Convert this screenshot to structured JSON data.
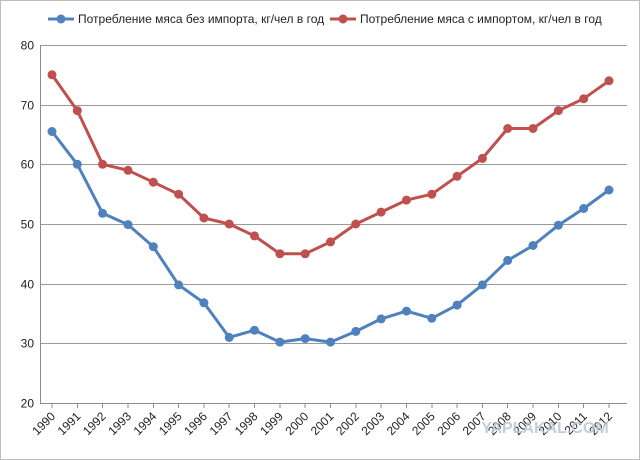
{
  "chart_data": {
    "type": "line",
    "x": [
      "1990",
      "1991",
      "1992",
      "1993",
      "1994",
      "1995",
      "1996",
      "1997",
      "1998",
      "1999",
      "2000",
      "2001",
      "2002",
      "2003",
      "2004",
      "2005",
      "2006",
      "2007",
      "2008",
      "2009",
      "2010",
      "2011",
      "2012"
    ],
    "series": [
      {
        "name": "Потребление мяса без импорта, кг/чел в год",
        "color": "#4f81bd",
        "values": [
          65.5,
          60,
          51.8,
          49.9,
          46.2,
          39.8,
          36.8,
          31,
          32.2,
          30.2,
          30.8,
          30.2,
          32,
          34.1,
          35.4,
          34.2,
          36.4,
          39.8,
          43.9,
          46.4,
          49.8,
          52.6,
          55.7
        ]
      },
      {
        "name": "Потребление мяса с импортом, кг/чел в год",
        "color": "#c0504d",
        "values": [
          75,
          69,
          60,
          59,
          57,
          55,
          51,
          50,
          48,
          45,
          45,
          47,
          50,
          52,
          54,
          55,
          58,
          61,
          66,
          66,
          69,
          71,
          74
        ]
      }
    ],
    "title": "",
    "xlabel": "",
    "ylabel": "",
    "ylim": [
      20,
      80
    ],
    "yticks": [
      "20",
      "30",
      "40",
      "50",
      "60",
      "70",
      "80"
    ],
    "grid": true,
    "legend_position": "top"
  },
  "watermark": "YAPLAKAL.COM"
}
